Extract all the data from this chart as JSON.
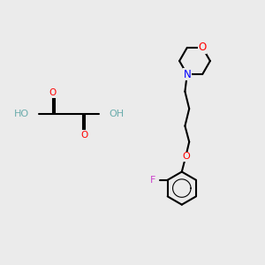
{
  "bg_color": "#ebebeb",
  "bond_color": "#000000",
  "bond_lw": 1.5,
  "atom_colors": {
    "O": "#ff0000",
    "N": "#0000ff",
    "F": "#cc44cc",
    "H": "#6aacac",
    "C": "#000000"
  },
  "font_size": 7.5,
  "title": ""
}
